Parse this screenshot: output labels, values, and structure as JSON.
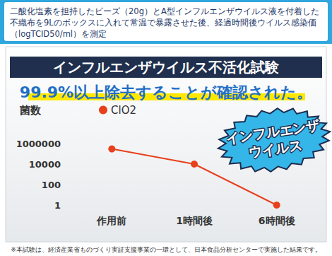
{
  "chart_data": {
    "type": "line",
    "title": "インフルエンザウイルス不活化試験",
    "subtitle": "99.9%以上除去することが確認された。",
    "annotations": [
      "二酸化塩素を担持したビーズ（20g）とA型インフルエンザウイルス液を付着した不織布を9Lのボックスに入れて常温で暴露させた後、経過時間後ウイルス感染価（logTCID50/ml）を測定",
      "インフルエンザ\nウイルス",
      "※本試験は、経済産業省ものづくり実証支援事業の一環として、日本食品分析センターで実施した結果です。"
    ],
    "ylabel": "菌数",
    "categories": [
      "作用前",
      "1時間後",
      "6時間後"
    ],
    "series": [
      {
        "name": "ClO2",
        "color": "#e8401c",
        "values": [
          300000,
          10000,
          1
        ],
        "marker": "circle"
      }
    ],
    "ylim": [
      1,
      1000000
    ],
    "yticks": [
      1,
      100,
      10000,
      1000000
    ],
    "log": "y",
    "grid": false,
    "legend": "top-left"
  }
}
